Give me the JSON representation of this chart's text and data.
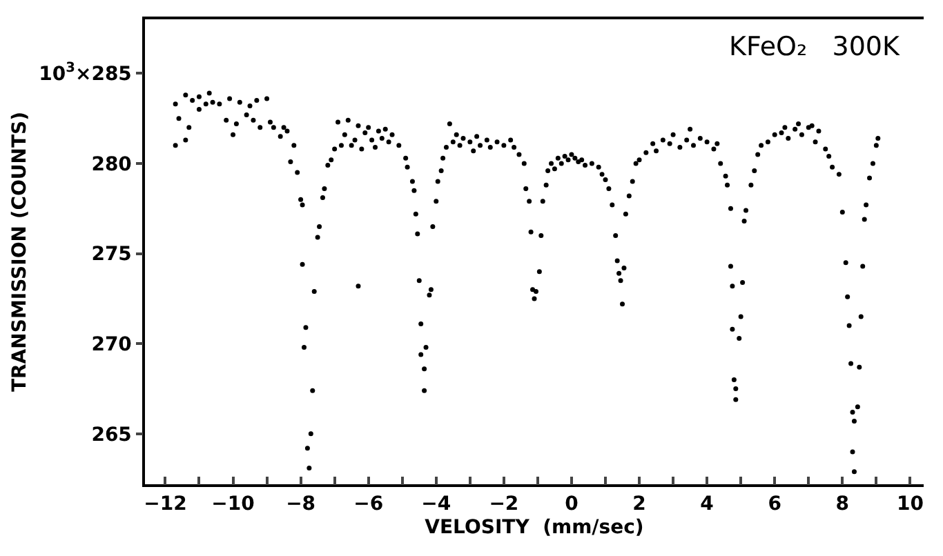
{
  "chart_data": {
    "type": "scatter",
    "xlabel": "VELOSITY  (mm/sec)",
    "ylabel": "TRANSMISSION (COUNTS)",
    "annotations": [
      "KFeO₂   300K"
    ],
    "marker": "circle",
    "xlim": [
      -12.6,
      10.4
    ],
    "ylim": [
      262.2,
      288
    ],
    "xticks": [
      -12,
      {
        "value": -11,
        "label": null
      },
      -10,
      {
        "value": -9,
        "label": null
      },
      -8,
      {
        "value": -7,
        "label": null
      },
      -6,
      {
        "value": -5,
        "label": null
      },
      -4,
      {
        "value": -3,
        "label": null
      },
      -2,
      {
        "value": -1,
        "label": null
      },
      0,
      {
        "value": 1,
        "label": null
      },
      2,
      {
        "value": 3,
        "label": null
      },
      4,
      {
        "value": 5,
        "label": null
      },
      6,
      {
        "value": 7,
        "label": null
      },
      8,
      {
        "value": 9,
        "label": null
      },
      10
    ],
    "yticks": [
      265,
      270,
      275,
      280,
      {
        "value": 285,
        "label": "10$^{3}$×285"
      }
    ],
    "series": [
      {
        "color": "#000000",
        "x": [
          -11.7,
          -11.7,
          -11.6,
          -11.4,
          -11.4,
          -11.3,
          -11.2,
          -11.0,
          -11.0,
          -10.8,
          -10.7,
          -10.6,
          -10.4,
          -10.2,
          -10.1,
          -10.0,
          -9.9,
          -9.8,
          -9.6,
          -9.5,
          -9.4,
          -9.3,
          -9.2,
          -9.0,
          -8.9,
          -8.8,
          -8.6,
          -8.5,
          -8.4,
          -8.3,
          -8.2,
          -8.1,
          -8.0,
          -7.95,
          -7.95,
          -7.85,
          -7.9,
          -7.8,
          -7.75,
          -7.7,
          -7.65,
          -7.6,
          -7.5,
          -7.45,
          -7.35,
          -7.3,
          -7.2,
          -7.1,
          -7.0,
          -6.9,
          -6.8,
          -6.7,
          -6.6,
          -6.5,
          -6.4,
          -6.3,
          -6.3,
          -6.2,
          -6.1,
          -6.0,
          -5.9,
          -5.8,
          -5.7,
          -5.6,
          -5.5,
          -5.4,
          -5.3,
          -5.1,
          -4.9,
          -4.85,
          -4.7,
          -4.65,
          -4.6,
          -4.55,
          -4.5,
          -4.45,
          -4.45,
          -4.35,
          -4.35,
          -4.3,
          -4.2,
          -4.15,
          -4.1,
          -4.0,
          -3.95,
          -3.85,
          -3.8,
          -3.7,
          -3.6,
          -3.5,
          -3.4,
          -3.3,
          -3.2,
          -3.0,
          -2.9,
          -2.8,
          -2.7,
          -2.5,
          -2.4,
          -2.2,
          -2.0,
          -1.8,
          -1.7,
          -1.55,
          -1.4,
          -1.35,
          -1.25,
          -1.2,
          -1.15,
          -1.1,
          -1.05,
          -0.95,
          -0.9,
          -0.85,
          -0.75,
          -0.7,
          -0.6,
          -0.5,
          -0.4,
          -0.3,
          -0.2,
          -0.1,
          0.0,
          0.1,
          0.2,
          0.3,
          0.4,
          0.6,
          0.8,
          0.9,
          1.0,
          1.1,
          1.2,
          1.3,
          1.35,
          1.4,
          1.45,
          1.5,
          1.55,
          1.6,
          1.7,
          1.8,
          1.9,
          2.0,
          2.2,
          2.4,
          2.5,
          2.7,
          2.9,
          3.0,
          3.2,
          3.4,
          3.5,
          3.6,
          3.8,
          4.0,
          4.2,
          4.3,
          4.4,
          4.55,
          4.6,
          4.7,
          4.7,
          4.75,
          4.75,
          4.8,
          4.85,
          4.85,
          4.95,
          5.0,
          5.05,
          5.1,
          5.15,
          5.3,
          5.4,
          5.5,
          5.6,
          5.8,
          6.0,
          6.2,
          6.3,
          6.4,
          6.6,
          6.7,
          6.8,
          7.0,
          7.1,
          7.2,
          7.3,
          7.5,
          7.6,
          7.7,
          7.9,
          8.0,
          8.1,
          8.15,
          8.2,
          8.25,
          8.3,
          8.35,
          8.3,
          8.35,
          8.45,
          8.5,
          8.55,
          8.6,
          8.65,
          8.7,
          8.8,
          8.9,
          9.0,
          9.05
        ],
        "values": [
          283.3,
          281.0,
          282.5,
          283.8,
          281.3,
          282.0,
          283.5,
          283.0,
          283.7,
          283.3,
          283.9,
          283.4,
          283.3,
          282.4,
          283.6,
          281.6,
          282.2,
          283.4,
          282.7,
          283.2,
          282.4,
          283.5,
          282.0,
          283.6,
          282.3,
          282.0,
          281.5,
          282.0,
          281.8,
          280.1,
          281.0,
          279.5,
          278.0,
          277.7,
          274.4,
          270.9,
          269.8,
          264.2,
          263.1,
          265.0,
          267.4,
          272.9,
          275.9,
          276.5,
          278.1,
          278.6,
          279.9,
          280.2,
          280.8,
          282.3,
          281.0,
          281.6,
          282.4,
          281.0,
          281.3,
          282.1,
          273.2,
          280.8,
          281.7,
          282.0,
          281.3,
          280.9,
          281.8,
          281.4,
          281.9,
          281.2,
          281.6,
          281.0,
          280.3,
          279.8,
          279.0,
          278.5,
          277.2,
          276.1,
          273.5,
          271.1,
          269.4,
          268.6,
          267.4,
          269.8,
          272.7,
          273.0,
          276.5,
          277.9,
          279.0,
          279.6,
          280.3,
          280.9,
          282.2,
          281.2,
          281.6,
          281.0,
          281.4,
          281.2,
          280.7,
          281.5,
          281.0,
          281.3,
          280.9,
          281.2,
          281.0,
          281.3,
          280.9,
          280.5,
          280.0,
          278.6,
          277.9,
          276.2,
          273.0,
          272.5,
          272.9,
          274.0,
          276.0,
          277.9,
          278.8,
          279.6,
          280.0,
          279.7,
          280.3,
          280.0,
          280.4,
          280.2,
          280.5,
          280.3,
          280.1,
          280.2,
          279.9,
          280.0,
          279.8,
          279.4,
          279.1,
          278.6,
          277.7,
          276.0,
          274.6,
          273.9,
          273.5,
          272.2,
          274.2,
          277.2,
          278.2,
          279.0,
          280.0,
          280.2,
          280.6,
          281.1,
          280.7,
          281.3,
          281.1,
          281.6,
          280.9,
          281.3,
          281.9,
          281.0,
          281.4,
          281.2,
          280.8,
          281.1,
          280.0,
          279.3,
          278.8,
          277.5,
          274.3,
          273.2,
          270.8,
          268.0,
          267.5,
          266.9,
          270.3,
          271.5,
          273.4,
          276.8,
          277.4,
          278.8,
          279.6,
          280.5,
          281.0,
          281.2,
          281.6,
          281.7,
          282.0,
          281.4,
          281.9,
          282.2,
          281.6,
          282.0,
          282.1,
          281.2,
          281.8,
          280.8,
          280.4,
          279.8,
          279.4,
          277.3,
          274.5,
          272.6,
          271.0,
          268.9,
          266.2,
          265.7,
          264.0,
          262.9,
          266.5,
          268.7,
          271.5,
          274.3,
          276.9,
          277.7,
          279.2,
          280.0,
          281.0,
          281.4
        ]
      }
    ]
  }
}
